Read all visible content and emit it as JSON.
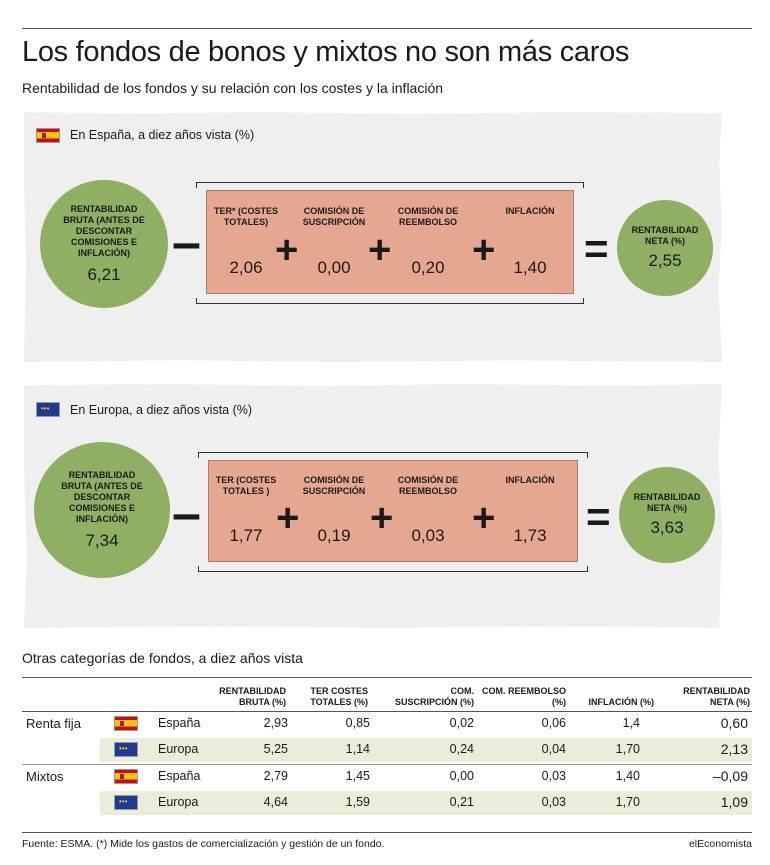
{
  "title": "Los fondos de bonos y mixtos no son más caros",
  "subtitle": "Rentabilidad de los fondos y su relación con los costes y la inflación",
  "spain": {
    "label": "En España, a diez años vista (%)",
    "flag": "spain-flag",
    "bruta_label": "RENTABILIDAD BRUTA (ANTES DE DESCONTAR COMISIONES E INFLACIÓN)",
    "bruta_value": "6,21",
    "items": [
      {
        "label": "TER* (COSTES TOTALES)",
        "value": "2,06"
      },
      {
        "label": "COMISIÓN DE SUSCRIPCIÓN",
        "value": "0,00"
      },
      {
        "label": "COMISIÓN DE REEMBOLSO",
        "value": "0,20"
      },
      {
        "label": "INFLACIÓN",
        "value": "1,40"
      }
    ],
    "neta_label": "RENTABILIDAD NETA (%)",
    "neta_value": "2,55"
  },
  "europe": {
    "label": "En Europa, a diez años vista (%)",
    "flag": "eu-flag",
    "bruta_label": "RENTABILIDAD BRUTA (ANTES DE DESCONTAR COMISIONES E INFLACIÓN)",
    "bruta_value": "7,34",
    "items": [
      {
        "label": "TER (COSTES TOTALES )",
        "value": "1,77"
      },
      {
        "label": "COMISIÓN DE SUSCRIPCIÓN",
        "value": "0,19"
      },
      {
        "label": "COMISIÓN DE REEMBOLSO",
        "value": "0,03"
      },
      {
        "label": "INFLACIÓN",
        "value": "1,73"
      }
    ],
    "neta_label": "RENTABILIDAD NETA (%)",
    "neta_value": "3,63"
  },
  "operators": {
    "minus": "–",
    "plus": "+",
    "equals": "="
  },
  "table": {
    "title": "Otras categorías de fondos, a diez años vista",
    "headers": [
      "RENTABILIDAD BRUTA (%)",
      "TER COSTES TOTALES (%)",
      "COM. SUSCRIPCIÓN (%)",
      "COM. REEMBOLSO (%)",
      "INFLACIÓN (%)",
      "RENTABILIDAD NETA (%)"
    ],
    "groups": [
      {
        "name": "Renta fija",
        "rows": [
          {
            "region": "España",
            "flag": "spain-flag",
            "values": [
              "2,93",
              "0,85",
              "0,02",
              "0,06",
              "1,4",
              "0,60"
            ]
          },
          {
            "region": "Europa",
            "flag": "eu-flag",
            "values": [
              "5,25",
              "1,14",
              "0,24",
              "0,04",
              "1,70",
              "2,13"
            ]
          }
        ]
      },
      {
        "name": "Mixtos",
        "rows": [
          {
            "region": "España",
            "flag": "spain-flag",
            "values": [
              "2,79",
              "1,45",
              "0,00",
              "0,03",
              "1,40",
              "–0,09"
            ]
          },
          {
            "region": "Europa",
            "flag": "eu-flag",
            "values": [
              "4,64",
              "1,59",
              "0,21",
              "0,03",
              "1,70",
              "1,09"
            ]
          }
        ]
      }
    ]
  },
  "footer": {
    "source": "Fuente: ESMA. (*) Mide los gastos de comercialización y gestión de un fondo.",
    "brand": "elEconomista"
  },
  "colors": {
    "circle": "#8fb062",
    "box": "#e6a791",
    "panel": "#efefef",
    "row_shade": "#ecedd8"
  }
}
